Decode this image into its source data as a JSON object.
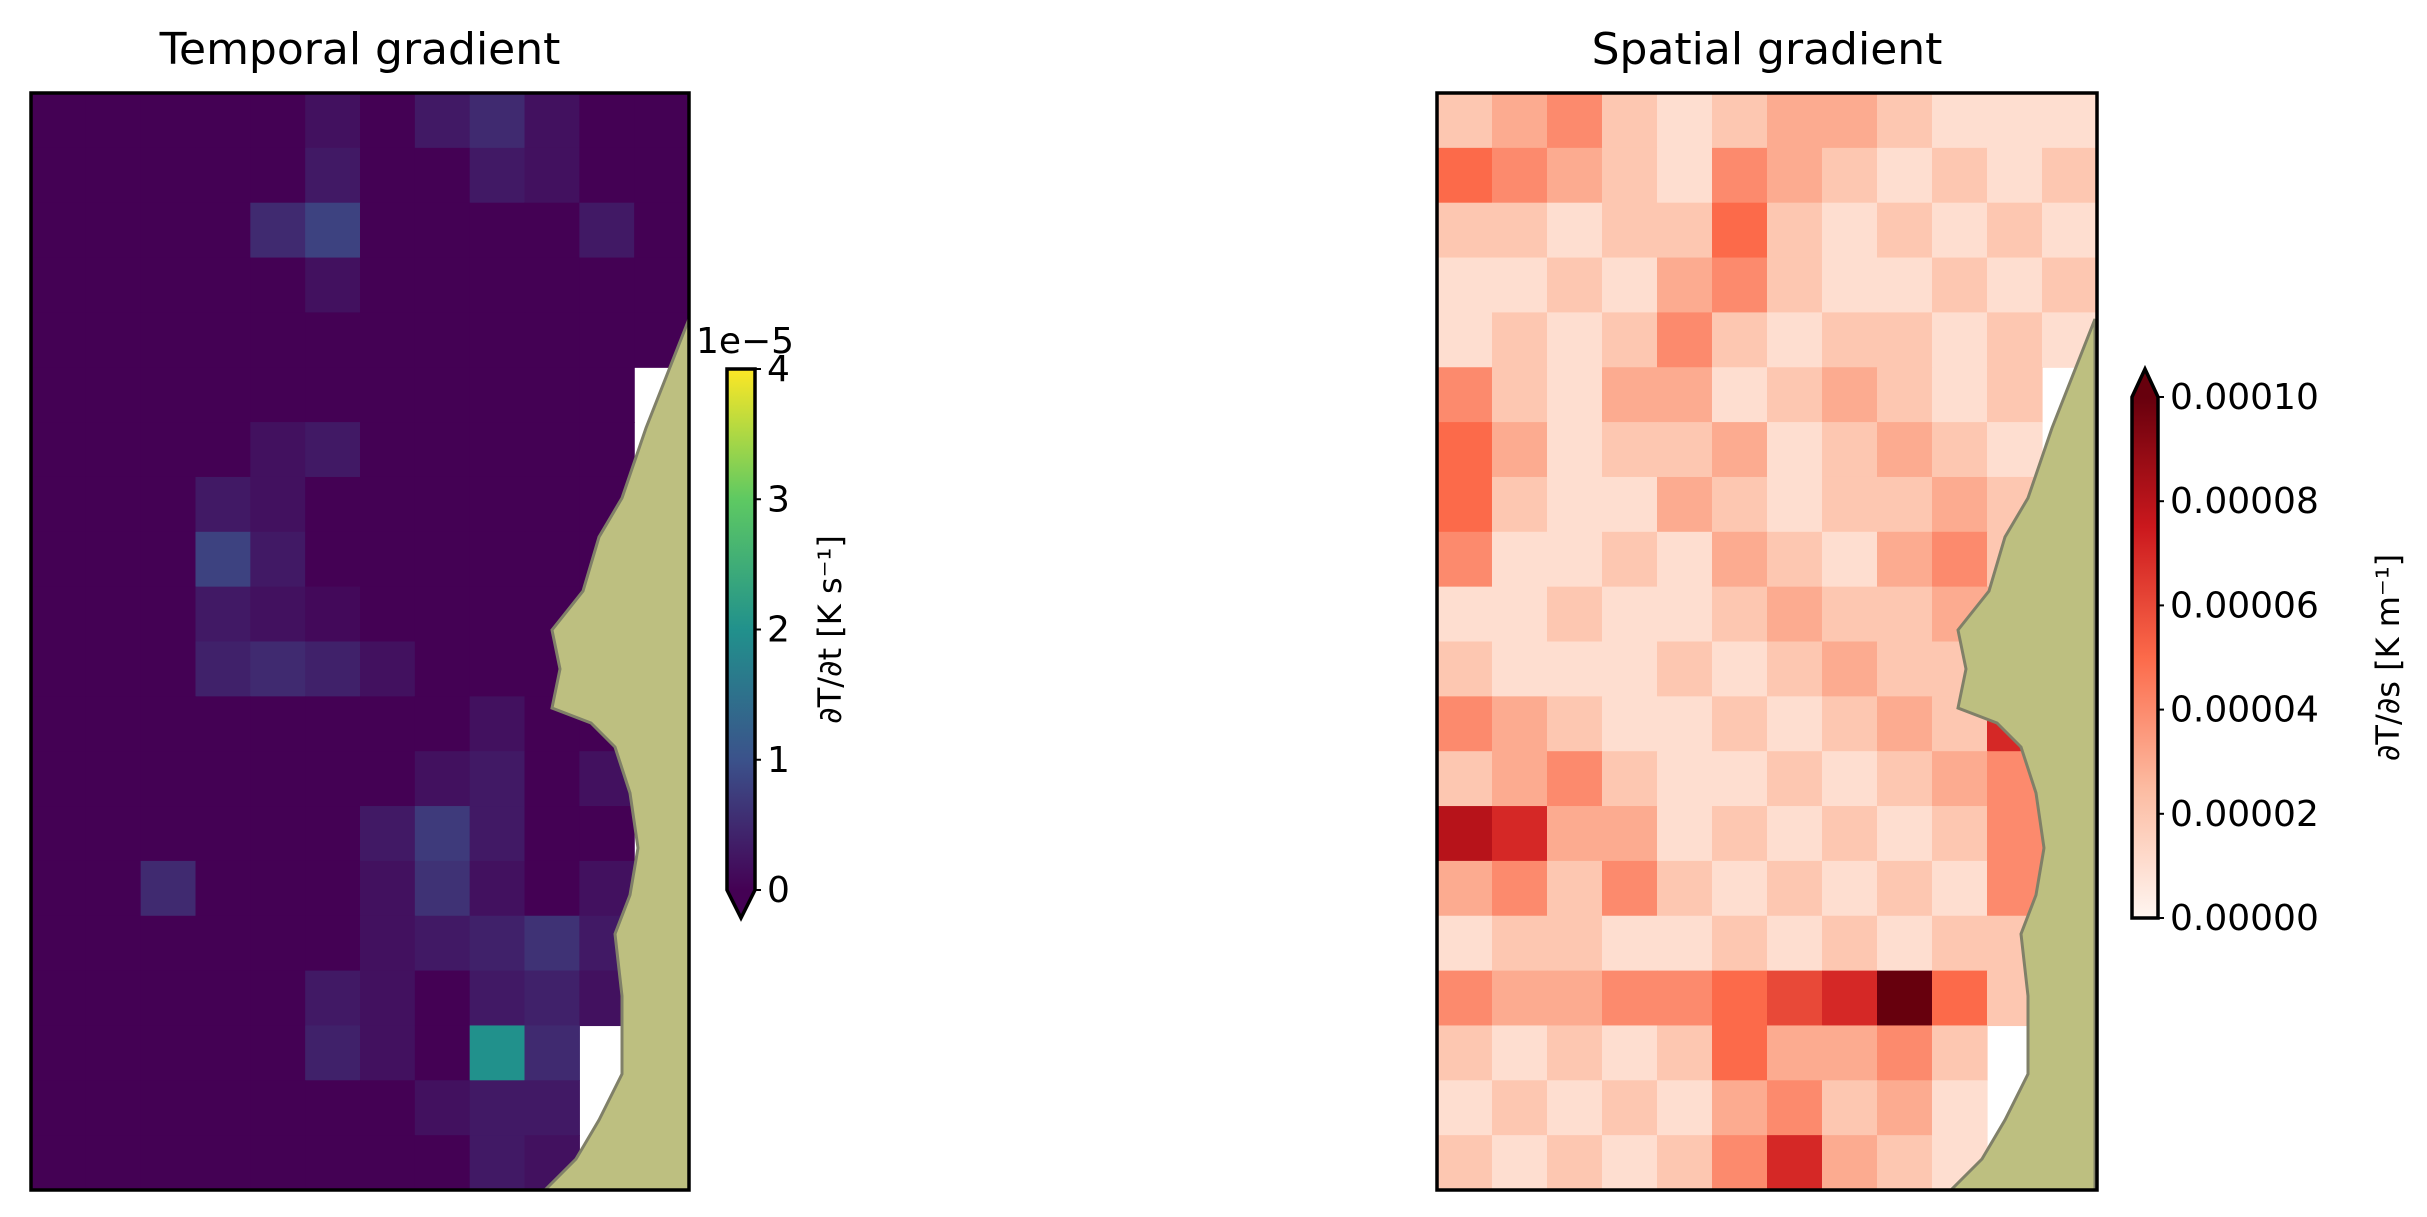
{
  "chart_data": [
    {
      "type": "heatmap",
      "title": "Temporal gradient",
      "colorbar_label": "∂T/∂t [K s⁻¹]",
      "colorbar_offset": "1e−5",
      "zlim": [
        0,
        4
      ],
      "zticks": [
        0,
        1,
        2,
        3,
        4
      ],
      "extend": "min",
      "colormap": [
        "#440154",
        "#3b528b",
        "#21918c",
        "#5ec962",
        "#fde725"
      ],
      "values": [
        [
          0,
          0,
          0,
          0,
          0,
          0.2,
          0,
          0.3,
          0.5,
          0.2,
          0,
          0
        ],
        [
          0,
          0,
          0,
          0,
          0,
          0.3,
          0,
          0,
          0.3,
          0.2,
          0,
          0
        ],
        [
          0,
          0,
          0,
          0,
          0.5,
          0.8,
          0,
          0,
          0,
          0,
          0.3,
          0
        ],
        [
          0,
          0,
          0,
          0,
          0,
          0.2,
          0,
          0,
          0,
          0,
          0,
          0
        ],
        [
          0,
          0,
          0,
          0,
          0,
          0,
          0,
          0,
          0,
          0,
          0,
          0
        ],
        [
          0,
          0,
          0,
          0,
          0,
          0,
          0,
          0,
          0,
          0,
          0,
          null
        ],
        [
          0,
          0,
          0,
          0,
          0.2,
          0.3,
          0,
          0,
          0,
          0,
          0,
          null
        ],
        [
          0,
          0,
          0,
          0.3,
          0.2,
          0,
          0,
          0,
          0,
          0,
          0,
          null
        ],
        [
          0,
          0,
          0,
          0.8,
          0.3,
          0,
          0,
          0,
          0,
          0,
          0,
          null
        ],
        [
          0,
          0,
          0,
          0.3,
          0.2,
          0.1,
          0,
          0,
          0,
          0,
          0,
          null
        ],
        [
          0,
          0,
          0,
          0.4,
          0.5,
          0.4,
          0.2,
          0,
          0,
          0,
          0,
          null
        ],
        [
          0,
          0,
          0,
          0,
          0,
          0,
          0,
          0,
          0.2,
          0,
          0,
          null
        ],
        [
          0,
          0,
          0,
          0,
          0,
          0,
          0,
          0.2,
          0.3,
          0,
          0.2,
          null
        ],
        [
          0,
          0,
          0,
          0,
          0,
          0,
          0.3,
          0.7,
          0.3,
          0,
          0,
          null
        ],
        [
          0,
          0,
          0.5,
          0,
          0,
          0,
          0.2,
          0.6,
          0.2,
          0,
          0.2,
          null
        ],
        [
          0,
          0,
          0,
          0,
          0,
          0,
          0.2,
          0.3,
          0.4,
          0.6,
          0.3,
          null
        ],
        [
          0,
          0,
          0,
          0,
          0,
          0.3,
          0.2,
          0,
          0.3,
          0.4,
          0.2,
          null
        ],
        [
          0,
          0,
          0,
          0,
          0,
          0.4,
          0.2,
          0,
          2.0,
          0.5,
          null,
          null
        ],
        [
          0,
          0,
          0,
          0,
          0,
          0,
          0,
          0.2,
          0.3,
          0.3,
          null,
          null
        ],
        [
          0,
          0,
          0,
          0,
          0,
          0,
          0,
          0,
          0.3,
          0.2,
          null,
          null
        ]
      ]
    },
    {
      "type": "heatmap",
      "title": "Spatial gradient",
      "colorbar_label": "∂T/∂s [K m⁻¹]",
      "zlim": [
        0,
        0.0001
      ],
      "zticks": [
        {
          "value": 0,
          "label": "0.00000"
        },
        {
          "value": 2e-05,
          "label": "0.00002"
        },
        {
          "value": 4e-05,
          "label": "0.00004"
        },
        {
          "value": 6e-05,
          "label": "0.00006"
        },
        {
          "value": 8e-05,
          "label": "0.00008"
        },
        {
          "value": 0.0001,
          "label": "0.00010"
        }
      ],
      "extend": "max",
      "colormap": [
        "#fff5f0",
        "#fcbba1",
        "#fc6a4a",
        "#cb181d",
        "#67000d"
      ],
      "values": [
        [
          2e-05,
          3e-05,
          4e-05,
          2e-05,
          1e-05,
          2e-05,
          3e-05,
          3e-05,
          2e-05,
          1e-05,
          1e-05,
          1e-05
        ],
        [
          5e-05,
          4e-05,
          3e-05,
          2e-05,
          1e-05,
          4e-05,
          3e-05,
          2e-05,
          1e-05,
          2e-05,
          1e-05,
          2e-05
        ],
        [
          2e-05,
          2e-05,
          1e-05,
          2e-05,
          2e-05,
          5e-05,
          2e-05,
          1e-05,
          2e-05,
          1e-05,
          2e-05,
          1e-05
        ],
        [
          1e-05,
          1e-05,
          2e-05,
          1e-05,
          3e-05,
          4e-05,
          2e-05,
          1e-05,
          1e-05,
          2e-05,
          1e-05,
          2e-05
        ],
        [
          1e-05,
          2e-05,
          1e-05,
          2e-05,
          4e-05,
          2e-05,
          1e-05,
          2e-05,
          2e-05,
          1e-05,
          2e-05,
          1e-05
        ],
        [
          4e-05,
          2e-05,
          1e-05,
          3e-05,
          3e-05,
          1e-05,
          2e-05,
          3e-05,
          2e-05,
          1e-05,
          2e-05,
          null
        ],
        [
          5e-05,
          3e-05,
          1e-05,
          2e-05,
          2e-05,
          3e-05,
          1e-05,
          2e-05,
          3e-05,
          2e-05,
          1e-05,
          null
        ],
        [
          5e-05,
          2e-05,
          1e-05,
          1e-05,
          3e-05,
          2e-05,
          1e-05,
          2e-05,
          2e-05,
          3e-05,
          2e-05,
          null
        ],
        [
          4e-05,
          1e-05,
          1e-05,
          2e-05,
          1e-05,
          3e-05,
          2e-05,
          1e-05,
          3e-05,
          4e-05,
          2e-05,
          null
        ],
        [
          1e-05,
          1e-05,
          2e-05,
          1e-05,
          1e-05,
          2e-05,
          3e-05,
          2e-05,
          2e-05,
          3e-05,
          3e-05,
          null
        ],
        [
          2e-05,
          1e-05,
          1e-05,
          1e-05,
          2e-05,
          1e-05,
          2e-05,
          3e-05,
          2e-05,
          2e-05,
          2e-05,
          null
        ],
        [
          4e-05,
          3e-05,
          2e-05,
          1e-05,
          1e-05,
          2e-05,
          1e-05,
          2e-05,
          3e-05,
          2e-05,
          7e-05,
          null
        ],
        [
          2e-05,
          3e-05,
          4e-05,
          2e-05,
          1e-05,
          1e-05,
          2e-05,
          1e-05,
          2e-05,
          3e-05,
          4e-05,
          null
        ],
        [
          8e-05,
          7e-05,
          3e-05,
          3e-05,
          1e-05,
          2e-05,
          1e-05,
          2e-05,
          1e-05,
          2e-05,
          4e-05,
          null
        ],
        [
          3e-05,
          4e-05,
          2e-05,
          4e-05,
          2e-05,
          1e-05,
          2e-05,
          1e-05,
          2e-05,
          1e-05,
          4e-05,
          null
        ],
        [
          1e-05,
          2e-05,
          2e-05,
          1e-05,
          1e-05,
          2e-05,
          1e-05,
          2e-05,
          1e-05,
          2e-05,
          2e-05,
          null
        ],
        [
          4e-05,
          3e-05,
          3e-05,
          4e-05,
          4e-05,
          5e-05,
          6e-05,
          7e-05,
          0.0001,
          5e-05,
          2e-05,
          null
        ],
        [
          2e-05,
          1e-05,
          2e-05,
          1e-05,
          2e-05,
          5e-05,
          3e-05,
          3e-05,
          4e-05,
          2e-05,
          null,
          null
        ],
        [
          1e-05,
          2e-05,
          1e-05,
          2e-05,
          1e-05,
          3e-05,
          4e-05,
          2e-05,
          3e-05,
          1e-05,
          null,
          null
        ],
        [
          2e-05,
          1e-05,
          2e-05,
          1e-05,
          2e-05,
          4e-05,
          7e-05,
          3e-05,
          2e-05,
          1e-05,
          null,
          null
        ]
      ]
    }
  ]
}
